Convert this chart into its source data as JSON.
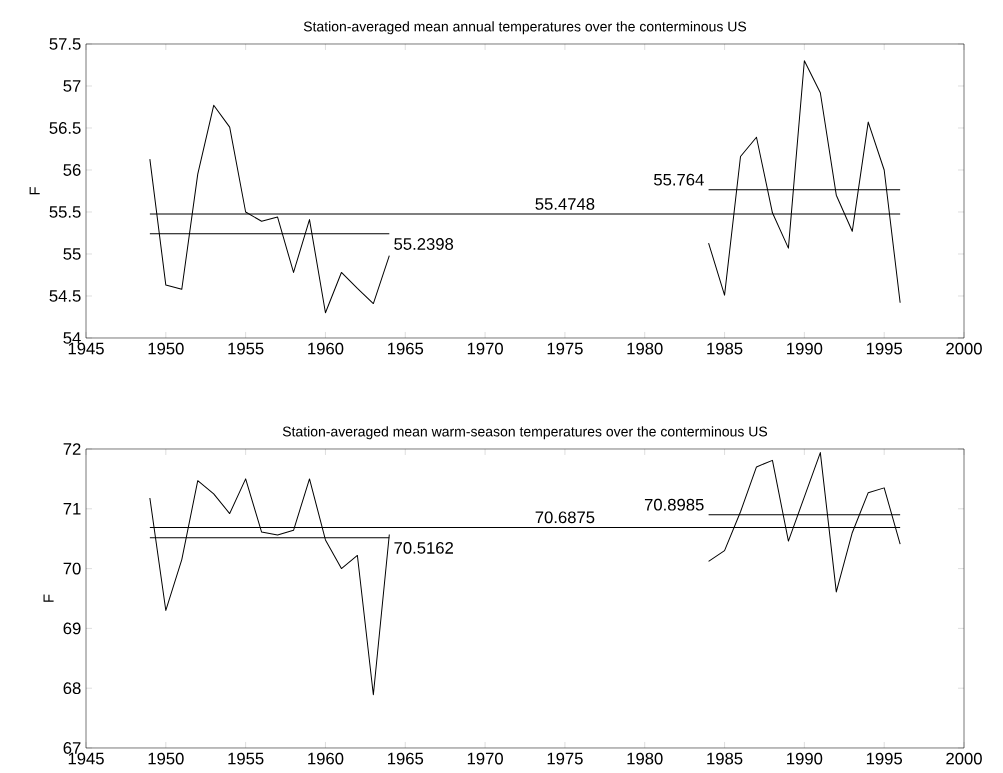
{
  "chart_data": [
    {
      "type": "line",
      "title": "Station-averaged mean annual temperatures over the conterminous US",
      "ylabel": "F",
      "xlim": [
        1945,
        2000
      ],
      "ylim": [
        54,
        57.5
      ],
      "xticks": [
        1945,
        1950,
        1955,
        1960,
        1965,
        1970,
        1975,
        1980,
        1985,
        1990,
        1995,
        2000
      ],
      "yticks": [
        54,
        54.5,
        55,
        55.5,
        56,
        56.5,
        57,
        57.5
      ],
      "series": [
        {
          "type": "line",
          "color": "#000000",
          "x": [
            1949,
            1950,
            1951,
            1952,
            1953,
            1954,
            1955,
            1956,
            1957,
            1958,
            1959,
            1960,
            1961,
            1962,
            1963,
            1964
          ],
          "values": [
            56.13,
            54.63,
            54.58,
            55.95,
            56.77,
            56.51,
            55.5,
            55.39,
            55.44,
            54.78,
            55.41,
            54.3,
            54.78,
            54.59,
            54.41,
            54.98
          ]
        },
        {
          "type": "line",
          "color": "#000000",
          "x": [
            1984,
            1985,
            1986,
            1987,
            1988,
            1989,
            1990,
            1991,
            1992,
            1993,
            1994,
            1995,
            1996
          ],
          "values": [
            55.13,
            54.51,
            56.16,
            56.39,
            55.49,
            55.07,
            57.3,
            56.92,
            55.7,
            55.27,
            56.57,
            56.0,
            54.42
          ]
        },
        {
          "type": "line",
          "color": "#000000",
          "x": [
            1949,
            1964
          ],
          "values": [
            55.2398,
            55.2398
          ]
        },
        {
          "type": "line",
          "color": "#000000",
          "x": [
            1949,
            1996
          ],
          "values": [
            55.4748,
            55.4748
          ]
        },
        {
          "type": "line",
          "color": "#000000",
          "x": [
            1984,
            1996
          ],
          "values": [
            55.764,
            55.764
          ]
        }
      ],
      "annotations": [
        {
          "text": "55.2398",
          "x": 1964,
          "y": 55.2398
        },
        {
          "text": "55.4748",
          "x": 1975,
          "y": 55.4748
        },
        {
          "text": "55.764",
          "x": 1984,
          "y": 55.764
        }
      ]
    },
    {
      "type": "line",
      "title": "Station-averaged mean warm-season temperatures over the conterminous US",
      "ylabel": "F",
      "xlim": [
        1945,
        2000
      ],
      "ylim": [
        67,
        72
      ],
      "xticks": [
        1945,
        1950,
        1955,
        1960,
        1965,
        1970,
        1975,
        1980,
        1985,
        1990,
        1995,
        2000
      ],
      "yticks": [
        67,
        68,
        69,
        70,
        71,
        72
      ],
      "series": [
        {
          "type": "line",
          "color": "#000000",
          "x": [
            1949,
            1950,
            1951,
            1952,
            1953,
            1954,
            1955,
            1956,
            1957,
            1958,
            1959,
            1960,
            1961,
            1962,
            1963,
            1964
          ],
          "values": [
            71.18,
            69.3,
            70.15,
            71.47,
            71.25,
            70.92,
            71.5,
            70.61,
            70.56,
            70.64,
            71.5,
            70.48,
            70.0,
            70.22,
            67.89,
            70.57
          ]
        },
        {
          "type": "line",
          "color": "#000000",
          "x": [
            1984,
            1985,
            1986,
            1987,
            1988,
            1989,
            1990,
            1991,
            1992,
            1993,
            1994,
            1995,
            1996
          ],
          "values": [
            70.12,
            70.3,
            70.95,
            71.7,
            71.81,
            70.46,
            71.2,
            71.94,
            69.61,
            70.6,
            71.27,
            71.35,
            70.41
          ]
        },
        {
          "type": "line",
          "color": "#000000",
          "x": [
            1949,
            1964
          ],
          "values": [
            70.5162,
            70.5162
          ]
        },
        {
          "type": "line",
          "color": "#000000",
          "x": [
            1949,
            1996
          ],
          "values": [
            70.6875,
            70.6875
          ]
        },
        {
          "type": "line",
          "color": "#000000",
          "x": [
            1984,
            1996
          ],
          "values": [
            70.8985,
            70.8985
          ]
        }
      ],
      "annotations": [
        {
          "text": "70.5162",
          "x": 1964,
          "y": 70.5162
        },
        {
          "text": "70.6875",
          "x": 1975,
          "y": 70.6875
        },
        {
          "text": "70.8985",
          "x": 1984,
          "y": 70.8985
        }
      ]
    }
  ]
}
